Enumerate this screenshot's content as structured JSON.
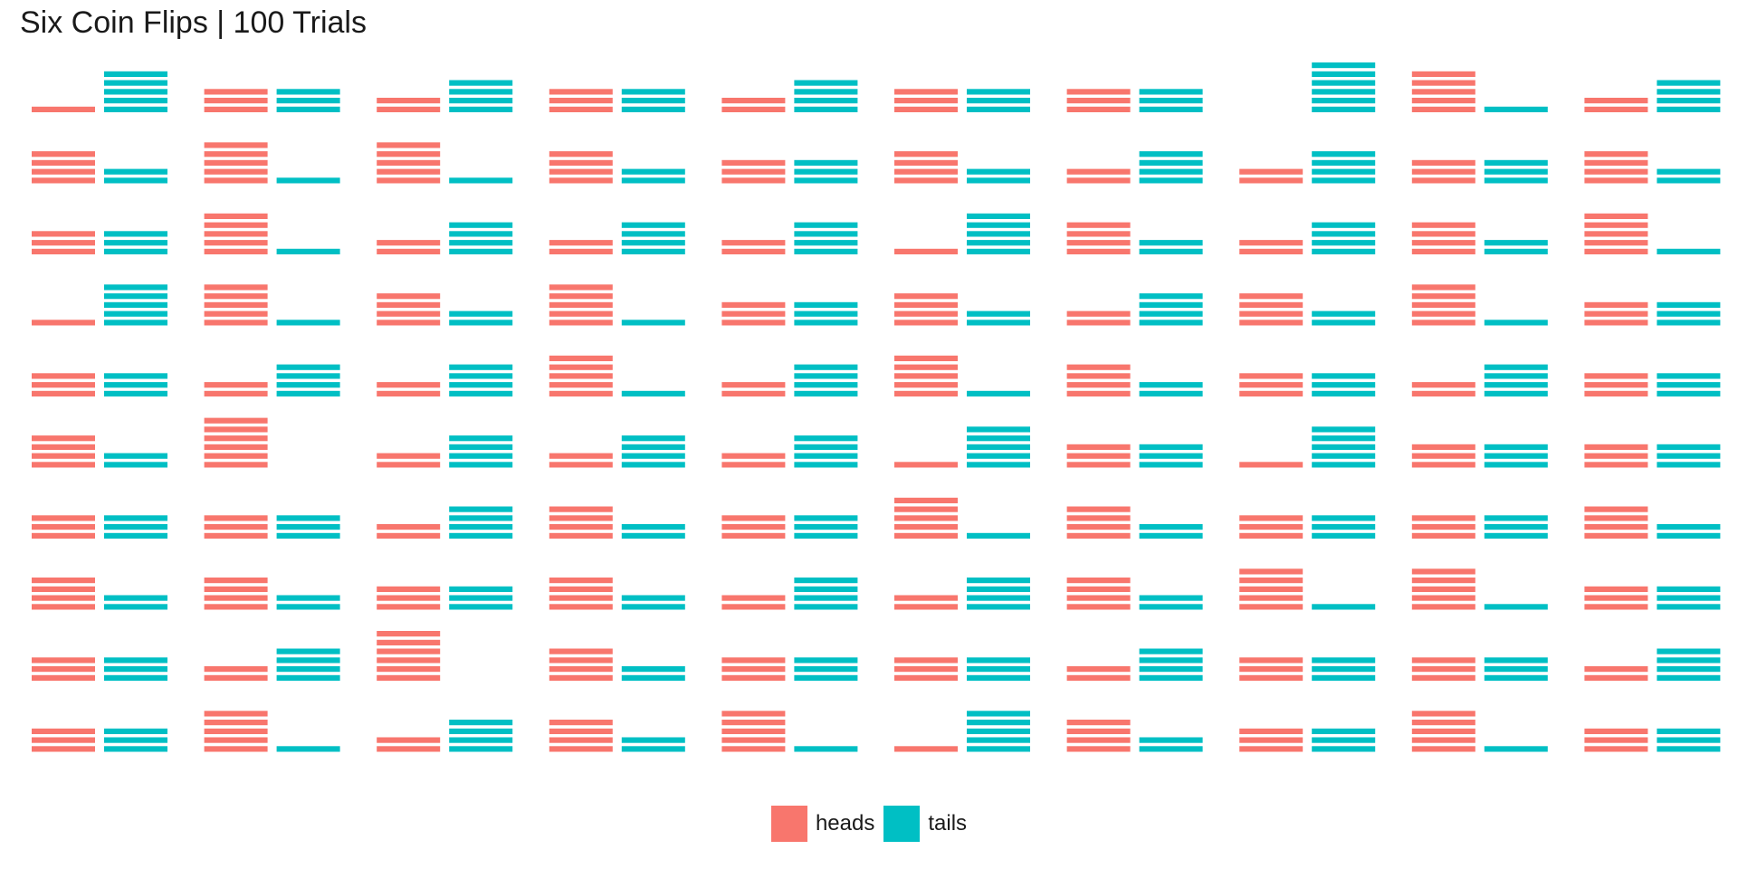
{
  "chart_data": {
    "type": "bar",
    "title": "Six Coin Flips | 100 Trials",
    "xlabel": "",
    "ylabel": "",
    "flips_per_trial": 6,
    "grid": false,
    "layout": "small multiples, 10 rows x 10 columns, one panel per trial, each flip drawn as a stacked unit",
    "legend": {
      "position": "bottom-center",
      "entries": [
        {
          "key": "heads",
          "label": "heads",
          "color": "#F8766D"
        },
        {
          "key": "tails",
          "label": "tails",
          "color": "#00BFC4"
        }
      ]
    },
    "categories": [
      "heads",
      "tails"
    ],
    "heads_per_trial": [
      [
        1,
        3,
        2,
        3,
        2,
        3,
        3,
        0,
        5,
        2
      ],
      [
        4,
        5,
        5,
        4,
        3,
        4,
        2,
        2,
        3,
        4
      ],
      [
        3,
        5,
        2,
        2,
        2,
        1,
        4,
        2,
        4,
        5
      ],
      [
        1,
        5,
        4,
        5,
        3,
        4,
        2,
        4,
        5,
        3
      ],
      [
        3,
        2,
        2,
        5,
        2,
        5,
        4,
        3,
        2,
        3
      ],
      [
        4,
        6,
        2,
        2,
        2,
        1,
        3,
        1,
        3,
        3
      ],
      [
        3,
        3,
        2,
        4,
        3,
        5,
        4,
        3,
        3,
        4
      ],
      [
        4,
        4,
        3,
        4,
        2,
        2,
        4,
        5,
        5,
        3
      ],
      [
        3,
        2,
        6,
        4,
        3,
        3,
        2,
        3,
        3,
        2
      ],
      [
        3,
        5,
        2,
        4,
        5,
        1,
        4,
        3,
        5,
        3
      ]
    ]
  }
}
